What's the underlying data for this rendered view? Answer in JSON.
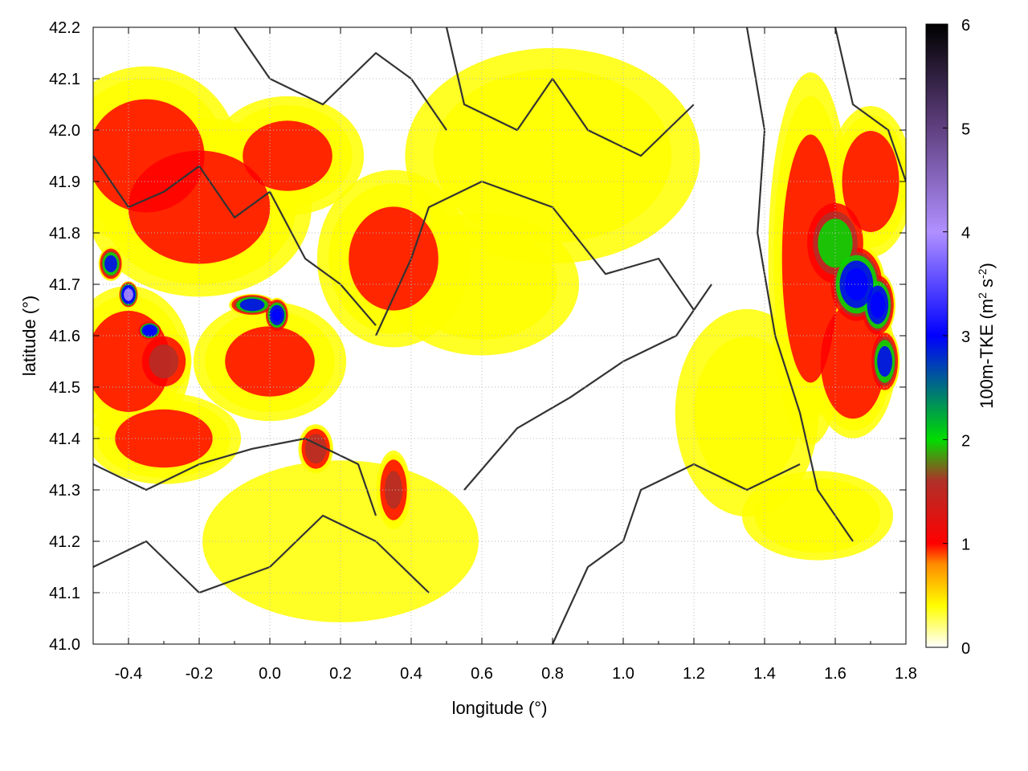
{
  "chart_data": {
    "type": "heatmap",
    "xlabel": "longitude (°)",
    "ylabel": "latitude (°)",
    "xlim": [
      -0.5,
      1.8
    ],
    "ylim": [
      41.0,
      42.2
    ],
    "xticks": [
      "-0.4",
      "-0.2",
      "0.0",
      "0.2",
      "0.4",
      "0.6",
      "0.8",
      "1.0",
      "1.2",
      "1.4",
      "1.6",
      "1.8"
    ],
    "yticks": [
      "41.0",
      "41.1",
      "41.2",
      "41.3",
      "41.4",
      "41.5",
      "41.6",
      "41.7",
      "41.8",
      "41.9",
      "42.0",
      "42.1",
      "42.2"
    ],
    "grid": true,
    "colorbar": {
      "label_main": "100m-TKE (m",
      "label_sup1": "2",
      "label_mid": " s",
      "label_sup2": "-2",
      "label_end": ")",
      "range": [
        0,
        6
      ],
      "ticks": [
        "0",
        "1",
        "2",
        "3",
        "4",
        "5",
        "6"
      ],
      "stops": [
        {
          "value": 0.0,
          "color": "#ffffff"
        },
        {
          "value": 0.4,
          "color": "#ffff00"
        },
        {
          "value": 0.8,
          "color": "#ff8c00"
        },
        {
          "value": 1.0,
          "color": "#ff0000"
        },
        {
          "value": 1.6,
          "color": "#b03028"
        },
        {
          "value": 2.0,
          "color": "#00dd00"
        },
        {
          "value": 3.0,
          "color": "#0000ff"
        },
        {
          "value": 4.0,
          "color": "#b090ff"
        },
        {
          "value": 5.0,
          "color": "#604080"
        },
        {
          "value": 6.0,
          "color": "#000000"
        }
      ]
    },
    "hotspots": [
      {
        "lon": -0.35,
        "lat": 41.95,
        "value": 1.1,
        "slon": 0.18,
        "slat": 0.12
      },
      {
        "lon": -0.2,
        "lat": 41.85,
        "value": 1.1,
        "slon": 0.22,
        "slat": 0.12
      },
      {
        "lon": 0.05,
        "lat": 41.95,
        "value": 1.0,
        "slon": 0.15,
        "slat": 0.08
      },
      {
        "lon": 0.35,
        "lat": 41.75,
        "value": 1.0,
        "slon": 0.15,
        "slat": 0.12
      },
      {
        "lon": -0.4,
        "lat": 41.55,
        "value": 1.2,
        "slon": 0.12,
        "slat": 0.1
      },
      {
        "lon": -0.3,
        "lat": 41.55,
        "value": 1.7,
        "slon": 0.05,
        "slat": 0.04
      },
      {
        "lon": -0.3,
        "lat": 41.4,
        "value": 1.1,
        "slon": 0.15,
        "slat": 0.06
      },
      {
        "lon": 0.0,
        "lat": 41.55,
        "value": 1.0,
        "slon": 0.15,
        "slat": 0.08
      },
      {
        "lon": -0.45,
        "lat": 41.74,
        "value": 2.8,
        "slon": 0.02,
        "slat": 0.02
      },
      {
        "lon": -0.4,
        "lat": 41.68,
        "value": 4.3,
        "slon": 0.015,
        "slat": 0.015
      },
      {
        "lon": -0.34,
        "lat": 41.61,
        "value": 3.5,
        "slon": 0.02,
        "slat": 0.01
      },
      {
        "lon": -0.05,
        "lat": 41.66,
        "value": 3.0,
        "slon": 0.04,
        "slat": 0.012
      },
      {
        "lon": 0.02,
        "lat": 41.64,
        "value": 3.2,
        "slon": 0.02,
        "slat": 0.02
      },
      {
        "lon": 0.13,
        "lat": 41.38,
        "value": 1.9,
        "slon": 0.03,
        "slat": 0.03
      },
      {
        "lon": 0.35,
        "lat": 41.3,
        "value": 1.6,
        "slon": 0.03,
        "slat": 0.05
      },
      {
        "lon": 1.53,
        "lat": 41.75,
        "value": 1.2,
        "slon": 0.08,
        "slat": 0.25
      },
      {
        "lon": 1.6,
        "lat": 41.78,
        "value": 2.2,
        "slon": 0.06,
        "slat": 0.06
      },
      {
        "lon": 1.66,
        "lat": 41.7,
        "value": 3.3,
        "slon": 0.05,
        "slat": 0.05
      },
      {
        "lon": 1.72,
        "lat": 41.66,
        "value": 3.3,
        "slon": 0.03,
        "slat": 0.04
      },
      {
        "lon": 1.74,
        "lat": 41.55,
        "value": 2.8,
        "slon": 0.025,
        "slat": 0.04
      },
      {
        "lon": 1.65,
        "lat": 41.55,
        "value": 1.5,
        "slon": 0.08,
        "slat": 0.1
      },
      {
        "lon": 1.7,
        "lat": 41.9,
        "value": 1.2,
        "slon": 0.08,
        "slat": 0.1
      },
      {
        "lon": 1.55,
        "lat": 41.25,
        "value": 0.9,
        "slon": 0.15,
        "slat": 0.06
      },
      {
        "lon": 0.8,
        "lat": 41.95,
        "value": 0.8,
        "slon": 0.3,
        "slat": 0.15
      },
      {
        "lon": 0.6,
        "lat": 41.7,
        "value": 0.7,
        "slon": 0.2,
        "slat": 0.1
      },
      {
        "lon": 1.35,
        "lat": 41.45,
        "value": 0.6,
        "slon": 0.15,
        "slat": 0.15
      },
      {
        "lon": 0.2,
        "lat": 41.2,
        "value": 0.5,
        "slon": 0.3,
        "slat": 0.12
      }
    ]
  }
}
